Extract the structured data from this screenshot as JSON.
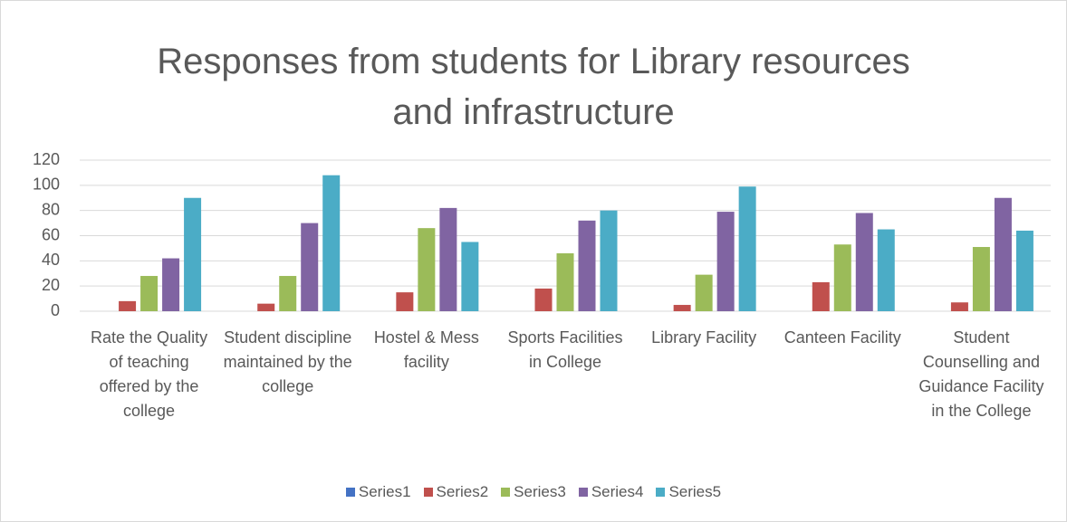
{
  "chart_data": {
    "type": "bar",
    "title": "Responses from students for Library resources and infrastructure",
    "categories": [
      "Rate the Quality of teaching offered by the college",
      "Student discipline maintained by the college",
      "Hostel & Mess facility",
      "Sports Facilities in College",
      "Library Facility",
      "Canteen Facility",
      "Student Counselling and Guidance Facility in the College"
    ],
    "series": [
      {
        "name": "Series1",
        "color": "#4472c4",
        "values": [
          0,
          0,
          0,
          0,
          0,
          0,
          0
        ]
      },
      {
        "name": "Series2",
        "color": "#c0504d",
        "values": [
          8,
          6,
          15,
          18,
          5,
          23,
          7
        ]
      },
      {
        "name": "Series3",
        "color": "#9bbb59",
        "values": [
          28,
          28,
          66,
          46,
          29,
          53,
          51
        ]
      },
      {
        "name": "Series4",
        "color": "#8064a2",
        "values": [
          42,
          70,
          82,
          72,
          79,
          78,
          90
        ]
      },
      {
        "name": "Series5",
        "color": "#4bacc6",
        "values": [
          90,
          108,
          55,
          80,
          99,
          65,
          64
        ]
      }
    ],
    "ylim": [
      0,
      120
    ],
    "yticks": [
      0,
      20,
      40,
      60,
      80,
      100,
      120
    ],
    "grid": true,
    "legend": "bottom"
  }
}
